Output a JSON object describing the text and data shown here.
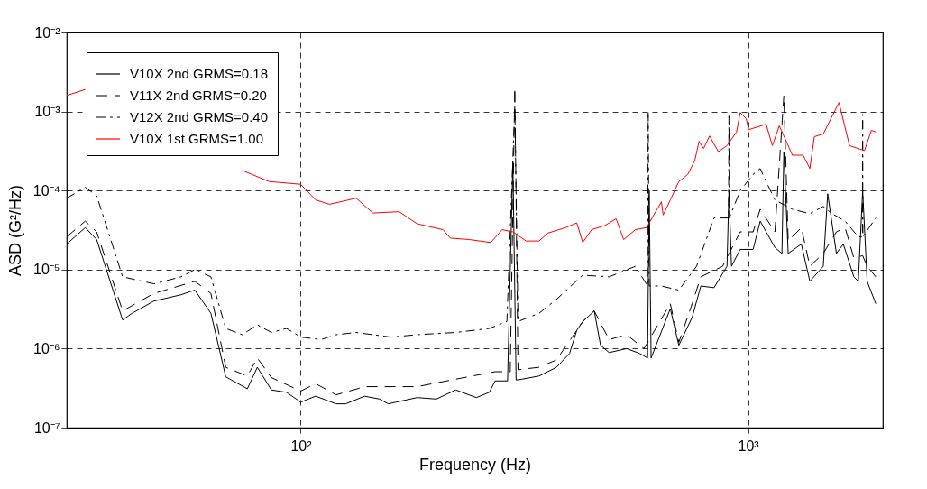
{
  "chart_data": {
    "type": "line",
    "xlabel": "Frequency (Hz)",
    "ylabel": "ASD (G²/Hz)",
    "log": "xy",
    "grid": true,
    "legend": "top left",
    "xlim": [
      30,
      2000
    ],
    "ylim": [
      1e-07,
      0.01
    ],
    "xticks": [
      {
        "value": 100,
        "label": "10²"
      },
      {
        "value": 1000,
        "label": "10³"
      }
    ],
    "yticks": [
      {
        "value": 1e-07,
        "label": "10⁻⁷"
      },
      {
        "value": 1e-06,
        "label": "10⁻⁶"
      },
      {
        "value": 1e-05,
        "label": "10⁻⁵"
      },
      {
        "value": 0.0001,
        "label": "10⁻⁴"
      },
      {
        "value": 0.001,
        "label": "10⁻³"
      },
      {
        "value": 0.01,
        "label": "10⁻²"
      }
    ],
    "series": [
      {
        "name": "V10X 2nd GRMS=0.18",
        "color": "#000000",
        "line_style": "solid",
        "x": [
          30,
          33,
          35,
          40,
          42,
          47,
          54,
          58,
          63,
          68,
          76,
          80,
          86,
          93,
          100,
          108,
          120,
          126,
          139,
          150,
          157,
          182,
          201,
          222,
          247,
          264,
          272,
          290,
          298,
          303,
          312,
          341,
          373,
          399,
          414,
          427,
          453,
          468,
          489,
          535,
          572,
          596,
          601,
          607,
          670,
          700,
          750,
          784,
          839,
          897,
          906,
          918,
          960,
          1026,
          1064,
          1148,
          1190,
          1202,
          1229,
          1315,
          1374,
          1472,
          1506,
          1575,
          1632,
          1723,
          1763,
          1803,
          1845,
          1929
        ],
        "values": [
          2.1e-05,
          3.4e-05,
          2.4e-05,
          2.3e-06,
          2.8e-06,
          4e-06,
          4.8e-06,
          5.5e-06,
          2.8e-06,
          4.4e-07,
          3.1e-07,
          5.8e-07,
          3e-07,
          2.8e-07,
          2.1e-07,
          2.5e-07,
          2e-07,
          2e-07,
          2.5e-07,
          2.3e-07,
          2e-07,
          2.4e-07,
          2.3e-07,
          3e-07,
          2.4e-07,
          2.8e-07,
          3.9e-07,
          3.9e-07,
          0.00023,
          4e-07,
          4.1e-07,
          4.5e-07,
          5.8e-07,
          8.7e-07,
          1.7e-06,
          2.2e-06,
          3e-06,
          1.1e-06,
          8.9e-07,
          1e-06,
          8.7e-07,
          7.6e-07,
          0.0001,
          7.6e-07,
          3.2e-06,
          1.1e-06,
          2.5e-06,
          6.2e-06,
          5.9e-06,
          1.1e-05,
          0.0001,
          1.1e-05,
          1.8e-05,
          1.8e-05,
          4.1e-05,
          1.9e-05,
          1.6e-05,
          0.00031,
          1.6e-05,
          2.1e-05,
          7.1e-06,
          1.1e-05,
          9.1e-05,
          1.6e-05,
          2.1e-05,
          8.1e-06,
          7.1e-06,
          0.0001,
          7.1e-06,
          3.7e-06
        ]
      },
      {
        "name": "V11X 2nd GRMS=0.20",
        "color": "#000000",
        "line_style": "dashed",
        "x": [
          30,
          33,
          35,
          40,
          47,
          58,
          63,
          68,
          76,
          80,
          86,
          100,
          108,
          120,
          139,
          182,
          222,
          272,
          294,
          301,
          306,
          341,
          373,
          427,
          453,
          489,
          535,
          585,
          670,
          700,
          750,
          784,
          877,
          960,
          1026,
          1064,
          1148,
          1202,
          1229,
          1315,
          1374,
          1472,
          1575,
          1647,
          1723,
          1803,
          1845,
          1929
        ],
        "values": [
          2.6e-05,
          4.1e-05,
          3e-05,
          3e-06,
          5e-06,
          7.1e-06,
          5e-06,
          5.8e-07,
          4.5e-07,
          7.6e-07,
          4.3e-07,
          2.9e-07,
          3.6e-07,
          2.6e-07,
          3.3e-07,
          3.3e-07,
          4.1e-07,
          5.1e-07,
          5.1e-07,
          0.002,
          5.4e-07,
          5.8e-07,
          7.2e-07,
          2.2e-06,
          3e-06,
          1.3e-06,
          1.5e-06,
          1e-06,
          3.7e-06,
          1.2e-06,
          3.7e-06,
          8.1e-06,
          1.1e-05,
          3e-05,
          3e-05,
          5.8e-05,
          3e-05,
          0.0016,
          2.3e-05,
          3.4e-05,
          1.1e-05,
          1.6e-05,
          3e-05,
          3.4e-05,
          1.4e-05,
          1.5e-05,
          1.1e-05,
          8.1e-06
        ]
      },
      {
        "name": "V12X 2nd GRMS=0.40",
        "color": "#000000",
        "line_style": "dashdot",
        "x": [
          30,
          33,
          35,
          40,
          47,
          54,
          58,
          63,
          68,
          74,
          80,
          86,
          93,
          100,
          111,
          120,
          133,
          159,
          182,
          222,
          264,
          289,
          301,
          306,
          341,
          373,
          427,
          489,
          560,
          596,
          598,
          601,
          640,
          700,
          767,
          839,
          904,
          906,
          908,
          960,
          1026,
          1064,
          1097,
          1148,
          1256,
          1374,
          1472,
          1540,
          1647,
          1763,
          1801,
          1803,
          1805,
          1929
        ],
        "values": [
          8e-05,
          0.00011,
          8.6e-05,
          8.1e-06,
          6.6e-06,
          8.1e-06,
          1e-05,
          8.1e-06,
          1.8e-06,
          1.5e-06,
          2e-06,
          1.6e-06,
          1.8e-06,
          1.4e-06,
          1.3e-06,
          1.5e-06,
          1.6e-06,
          1.4e-06,
          1.5e-06,
          1.6e-06,
          1.8e-06,
          2.2e-06,
          0.0012,
          2.2e-06,
          2.8e-06,
          4.2e-06,
          8.5e-06,
          8.1e-06,
          1.1e-05,
          6.2e-06,
          0.001,
          6.2e-06,
          6.2e-06,
          5.5e-06,
          1.1e-05,
          4.5e-05,
          4.5e-05,
          0.00088,
          4.5e-05,
          0.0001,
          0.00016,
          0.00019,
          0.00013,
          7.6e-05,
          5.8e-05,
          5.1e-05,
          6.3e-05,
          5.1e-05,
          4.1e-05,
          2.6e-05,
          2.6e-05,
          0.00092,
          2.6e-05,
          4.5e-05
        ]
      },
      {
        "name": "V10X 1st GRMS=1.00",
        "color": "#ff0000",
        "line_style": "solid",
        "x": [
          30,
          33,
          50,
          74,
          85,
          100,
          108,
          116,
          133,
          145,
          166,
          182,
          208,
          216,
          238,
          266,
          282,
          298,
          319,
          341,
          357,
          391,
          414,
          427,
          447,
          478,
          507,
          527,
          560,
          593,
          640,
          646,
          670,
          700,
          733,
          760,
          777,
          795,
          820,
          858,
          897,
          942,
          960,
          990,
          1003,
          1097,
          1133,
          1174,
          1256,
          1327,
          1374,
          1406,
          1472,
          1596,
          1685,
          1820,
          1886,
          1929
        ],
        "values": [
          0.0016,
          0.0019,
          null,
          0.00018,
          0.00013,
          0.00012,
          7.6e-05,
          6.7e-05,
          8e-05,
          5.2e-05,
          5.4e-05,
          3.8e-05,
          3.2e-05,
          2.5e-05,
          2.4e-05,
          2.2e-05,
          3.2e-05,
          3e-05,
          2.3e-05,
          2.3e-05,
          2.9e-05,
          3.4e-05,
          3.9e-05,
          2.2e-05,
          3.2e-05,
          3.6e-05,
          4.4e-05,
          2.4e-05,
          3.2e-05,
          3.4e-05,
          7.2e-05,
          4.9e-05,
          7.6e-05,
          0.00013,
          0.00016,
          0.00024,
          0.00042,
          0.00034,
          0.00049,
          0.00031,
          0.00037,
          0.00055,
          0.00097,
          0.00081,
          0.00059,
          0.00069,
          0.00037,
          0.00066,
          0.00028,
          0.00028,
          0.00019,
          0.00048,
          0.00052,
          0.0013,
          0.00037,
          0.00032,
          0.00058,
          0.00055
        ]
      }
    ]
  }
}
